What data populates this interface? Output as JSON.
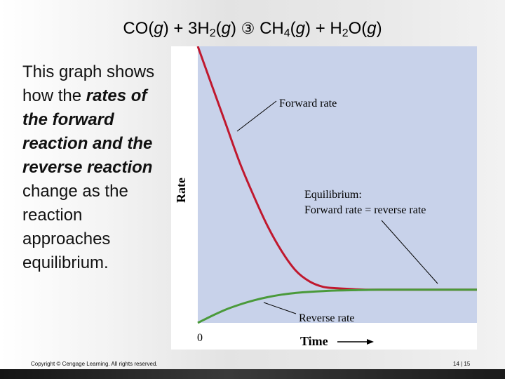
{
  "title": {
    "left_species": "CO",
    "phase_g": "g",
    "plus": "+",
    "h2_coef": "3H",
    "h2_sub": "2",
    "arrow": "③",
    "ch4_main": "CH",
    "ch4_sub": "4",
    "h2o_h": "H",
    "h2o_sub": "2",
    "h2o_o": "O"
  },
  "body": {
    "text_1": "This graph shows how the ",
    "emph_1": "rates of the forward reaction and the reverse reaction",
    "text_2": " change as the reaction approaches equilibrium."
  },
  "footer": {
    "copyright": "Copyright © Cengage Learning. All rights reserved.",
    "page": "14 | 15"
  },
  "colors": {
    "plot_bg": "#c8d2ea",
    "forward_line": "#c0182e",
    "reverse_line": "#4a9a3a",
    "bottom_bar": "#1e1e1e"
  },
  "chart_data": {
    "type": "line",
    "xlabel": "Time",
    "ylabel": "Rate",
    "x_tick_labels": [
      "0"
    ],
    "grid": false,
    "series": [
      {
        "name": "Forward rate",
        "x": [
          0,
          0.05,
          0.1,
          0.15,
          0.2,
          0.25,
          0.3,
          0.35,
          0.4,
          0.45,
          0.5,
          0.55,
          0.6,
          0.65,
          0.7,
          1.0
        ],
        "y": [
          1.0,
          0.86,
          0.72,
          0.58,
          0.46,
          0.35,
          0.26,
          0.19,
          0.15,
          0.13,
          0.125,
          0.122,
          0.12,
          0.12,
          0.12,
          0.12
        ]
      },
      {
        "name": "Reverse rate",
        "x": [
          0,
          0.05,
          0.1,
          0.15,
          0.2,
          0.25,
          0.3,
          0.35,
          0.4,
          0.45,
          0.5,
          0.55,
          0.6,
          0.65,
          0.7,
          1.0
        ],
        "y": [
          0.0,
          0.025,
          0.048,
          0.066,
          0.081,
          0.093,
          0.102,
          0.108,
          0.112,
          0.115,
          0.117,
          0.118,
          0.119,
          0.12,
          0.12,
          0.12
        ]
      }
    ],
    "annotations": [
      {
        "label": "Forward rate"
      },
      {
        "label": "Equilibrium:"
      },
      {
        "label": "Forward rate = reverse rate"
      },
      {
        "label": "Reverse rate"
      }
    ]
  }
}
